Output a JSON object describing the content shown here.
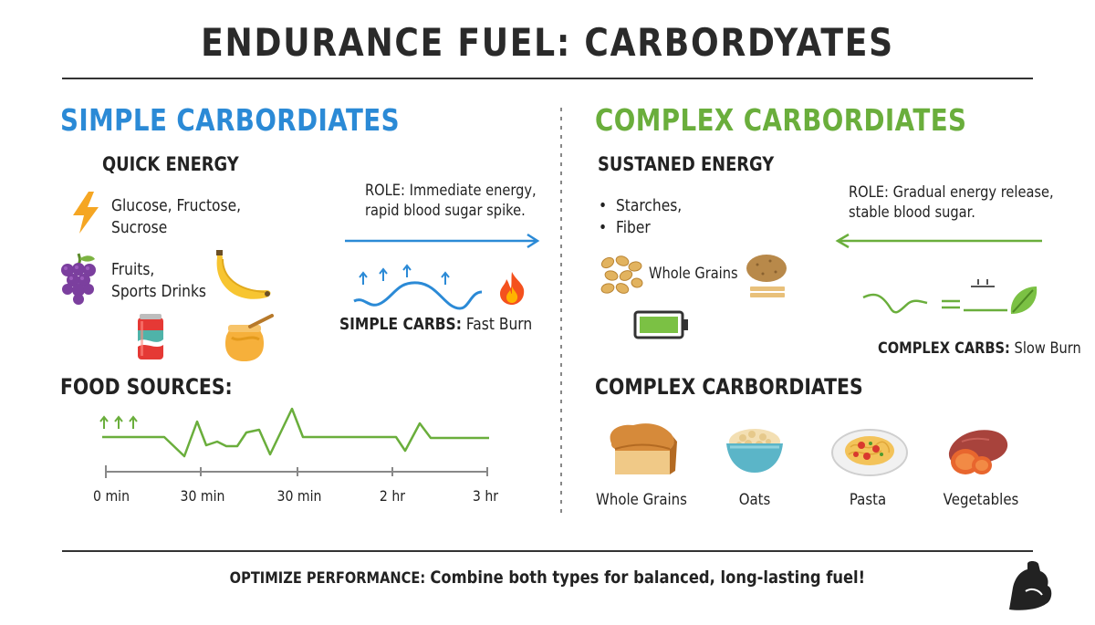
{
  "title": "ENDURANCE FUEL: CARBORDYATES",
  "colors": {
    "blue": "#2b8ad6",
    "green": "#6aae3c",
    "dark": "#222222",
    "orange": "#f5a623"
  },
  "simple": {
    "heading": "SIMPLE CARBORDIATES",
    "subheading": "QUICK ENERGY",
    "sugars": [
      "Glucose, Fructose,",
      "Sucrose"
    ],
    "foods": [
      "Fruits,",
      "Sports Drinks"
    ],
    "role_label": "ROLE:",
    "role_text": [
      "Immediate energy,",
      "rapid blood sugar spike."
    ],
    "burn_label": "SIMPLE CARBS:",
    "burn_text": "Fast Burn",
    "food_sources_heading": "FOOD SOURCES:",
    "timeline_ticks": [
      "0 min",
      "30 min",
      "30 min",
      "2 hr",
      "3 hr"
    ],
    "icons": [
      "lightning-icon",
      "grapes-icon",
      "banana-icon",
      "soda-can-icon",
      "honey-pot-icon",
      "flame-icon"
    ]
  },
  "complex": {
    "heading": "COMPLEX CARBORDIATES",
    "subheading": "SUSTANED ENERGY",
    "bullets": [
      "Starches,",
      "Fiber"
    ],
    "whole_grains_label": "Whole Grains",
    "role_label": "ROLE:",
    "role_text": [
      "Gradual energy release,",
      "stable blood sugar."
    ],
    "burn_label": "COMPLEX CARBS:",
    "burn_text": "Slow Burn",
    "foods_heading": "COMPLEX CARBORDIATES",
    "foods": [
      "Whole Grains",
      "Oats",
      "Pasta",
      "Vegetables"
    ],
    "icons": [
      "grain-icon",
      "potato-icon",
      "battery-icon",
      "leaf-icon",
      "bread-icon",
      "oats-bowl-icon",
      "pasta-plate-icon",
      "sweet-potato-icon"
    ]
  },
  "footer": {
    "label": "OPTIMIZE PERFORMANCE:",
    "text": "Combine both types for balanced, long-lasting fuel!",
    "icon": "flexed-arm-icon"
  }
}
